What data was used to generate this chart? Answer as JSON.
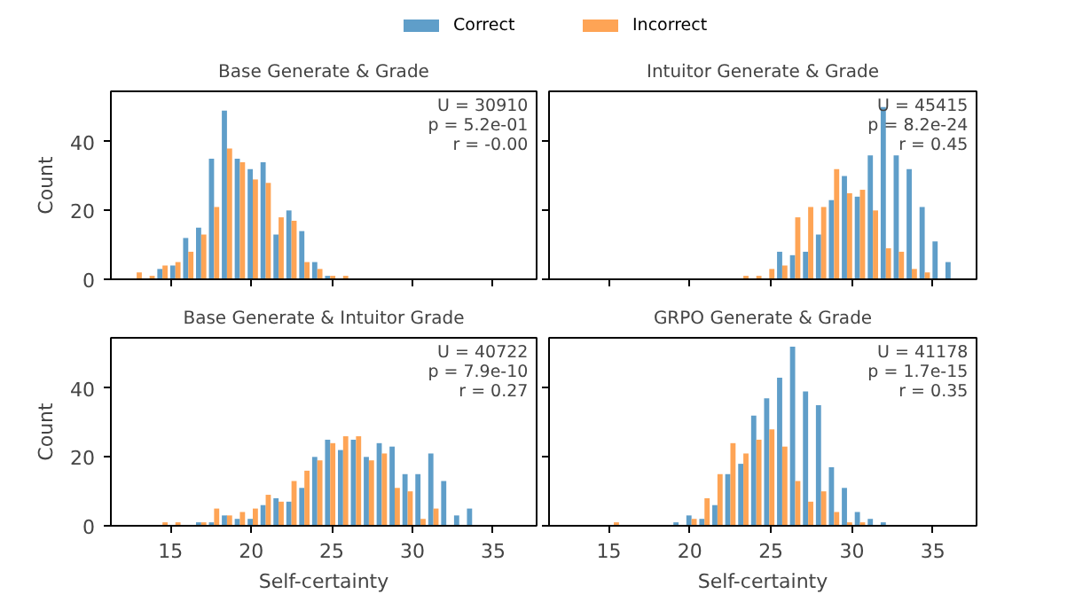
{
  "chart_data": [
    {
      "type": "histogram",
      "title": "Base Generate & Grade",
      "ylabel": "Count",
      "legend": "top",
      "tick_labels": "y",
      "xlim": [
        11.3,
        37.7
      ],
      "ylim": [
        0,
        54.6
      ],
      "xticks": [
        15,
        20,
        25,
        30,
        35
      ],
      "yticks": [
        0,
        20,
        40
      ],
      "annotations": [
        "U = 30910",
        "p = 5.2e-01",
        "r = -0.00"
      ],
      "bins": [
        12.5,
        13.3,
        14.1,
        14.9,
        15.7,
        16.5,
        17.3,
        18.1,
        18.9,
        19.7,
        20.5,
        21.3,
        22.1,
        22.9,
        23.7,
        24.5,
        25.3,
        26.1,
        26.9,
        27.7,
        28.5,
        29.3,
        30.1,
        30.9,
        31.7,
        32.5,
        33.3,
        34.1,
        34.9,
        35.7,
        36.5
      ],
      "series": [
        {
          "name": "Correct",
          "color": "#5f9ec9",
          "values": [
            0,
            0,
            3,
            4,
            12,
            15,
            35,
            49,
            35,
            32,
            34,
            13,
            20,
            14,
            5,
            1,
            0,
            0,
            0,
            0,
            0,
            0,
            0,
            0,
            0,
            0,
            0,
            0,
            0,
            0
          ]
        },
        {
          "name": "Incorrect",
          "color": "#fea455",
          "values": [
            2,
            1,
            4,
            5,
            8,
            13,
            21,
            38,
            34,
            29,
            28,
            18,
            17,
            5,
            3,
            1,
            1,
            0,
            0,
            0,
            0,
            0,
            0,
            0,
            0,
            0,
            0,
            0,
            0,
            0
          ]
        }
      ]
    },
    {
      "type": "histogram",
      "title": "Intuitor Generate & Grade",
      "tick_labels": false,
      "xlim": [
        11.3,
        37.7
      ],
      "ylim": [
        0,
        54.6
      ],
      "xticks": [
        15,
        20,
        25,
        30,
        35
      ],
      "yticks": [
        0,
        20,
        40
      ],
      "annotations": [
        "U = 45415",
        "p = 8.2e-24",
        "r = 0.45"
      ],
      "bins": [
        12.5,
        13.3,
        14.1,
        14.9,
        15.7,
        16.5,
        17.3,
        18.1,
        18.9,
        19.7,
        20.5,
        21.3,
        22.1,
        22.9,
        23.7,
        24.5,
        25.3,
        26.1,
        26.9,
        27.7,
        28.5,
        29.3,
        30.1,
        30.9,
        31.7,
        32.5,
        33.3,
        34.1,
        34.9,
        35.7,
        36.5
      ],
      "series": [
        {
          "color": "#5f9ec9",
          "values": [
            0,
            0,
            0,
            0,
            0,
            0,
            0,
            0,
            0,
            0,
            0,
            0,
            0,
            0,
            0,
            0,
            8,
            7,
            8,
            13,
            23,
            30,
            24,
            36,
            50,
            36,
            32,
            21,
            11,
            5
          ]
        },
        {
          "color": "#fea455",
          "values": [
            0,
            0,
            0,
            0,
            0,
            0,
            0,
            0,
            0,
            0,
            0,
            0,
            0,
            1,
            1,
            3,
            4,
            18,
            21,
            21,
            32,
            25,
            26,
            20,
            9,
            8,
            3,
            2,
            0,
            0
          ]
        }
      ]
    },
    {
      "type": "histogram",
      "title": "Base Generate & Intuitor Grade",
      "xlabel": "Self-certainty",
      "ylabel": "Count",
      "xlim": [
        11.3,
        37.7
      ],
      "ylim": [
        0,
        54.6
      ],
      "xticks": [
        15,
        20,
        25,
        30,
        35
      ],
      "yticks": [
        0,
        20,
        40
      ],
      "annotations": [
        "U = 40722",
        "p = 7.9e-10",
        "r = 0.27"
      ],
      "bins": [
        12.5,
        13.3,
        14.1,
        14.9,
        15.7,
        16.5,
        17.3,
        18.1,
        18.9,
        19.7,
        20.5,
        21.3,
        22.1,
        22.9,
        23.7,
        24.5,
        25.3,
        26.1,
        26.9,
        27.7,
        28.5,
        29.3,
        30.1,
        30.9,
        31.7,
        32.5,
        33.3,
        34.1,
        34.9,
        35.7,
        36.5
      ],
      "series": [
        {
          "color": "#5f9ec9",
          "values": [
            0,
            0,
            0,
            0,
            0,
            1,
            1,
            3,
            2,
            2,
            6,
            8,
            7,
            11,
            20,
            25,
            22,
            25,
            20,
            24,
            23,
            15,
            15,
            21,
            13,
            3,
            5,
            0,
            0,
            0
          ]
        },
        {
          "color": "#fea455",
          "values": [
            0,
            0,
            1,
            1,
            0,
            1,
            5,
            3,
            4,
            5,
            9,
            7,
            13,
            16,
            19,
            24,
            26,
            26,
            19,
            21,
            11,
            10,
            2,
            5,
            0,
            0,
            0,
            0,
            0,
            0
          ]
        }
      ]
    },
    {
      "type": "histogram",
      "title": "GRPO Generate & Grade",
      "xlabel": "Self-certainty",
      "tick_labels": "x",
      "xlim": [
        11.3,
        37.7
      ],
      "ylim": [
        0,
        54.6
      ],
      "xticks": [
        15,
        20,
        25,
        30,
        35
      ],
      "yticks": [
        0,
        20,
        40
      ],
      "annotations": [
        "U = 41178",
        "p = 1.7e-15",
        "r = 0.35"
      ],
      "bins": [
        12.5,
        13.3,
        14.1,
        14.9,
        15.7,
        16.5,
        17.3,
        18.1,
        18.9,
        19.7,
        20.5,
        21.3,
        22.1,
        22.9,
        23.7,
        24.5,
        25.3,
        26.1,
        26.9,
        27.7,
        28.5,
        29.3,
        30.1,
        30.9,
        31.7,
        32.5,
        33.3,
        34.1,
        34.9,
        35.7,
        36.5
      ],
      "series": [
        {
          "color": "#5f9ec9",
          "values": [
            0,
            0,
            0,
            0,
            0,
            0,
            0,
            0,
            1,
            3,
            2,
            6,
            15,
            18,
            32,
            37,
            43,
            52,
            39,
            35,
            17,
            11,
            4,
            2,
            1,
            0,
            0,
            0,
            0,
            0
          ]
        },
        {
          "color": "#fea455",
          "values": [
            0,
            0,
            0,
            1,
            0,
            0,
            0,
            0,
            0,
            2,
            8,
            15,
            24,
            21,
            25,
            28,
            23,
            13,
            7,
            10,
            4,
            1,
            1,
            0,
            0,
            0,
            0,
            0,
            0,
            0
          ]
        }
      ]
    }
  ]
}
